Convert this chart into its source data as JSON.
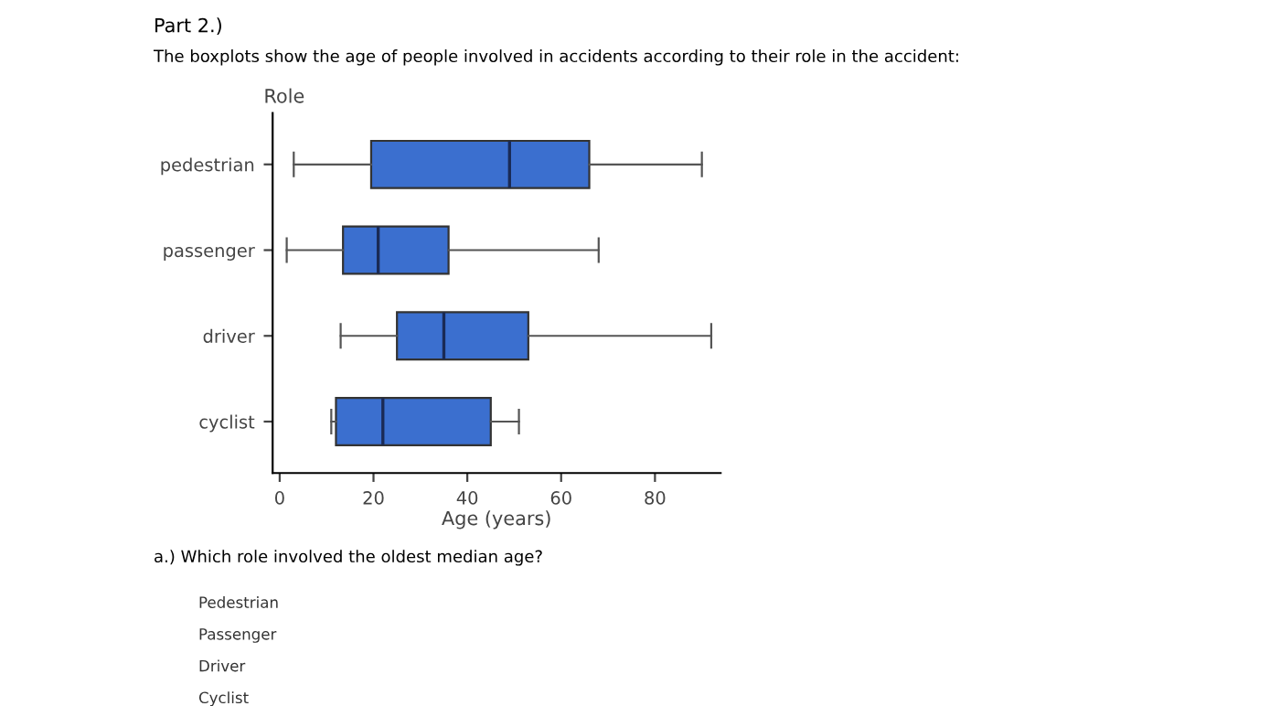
{
  "chart_data": {
    "type": "box",
    "title": "Part 2.)",
    "subtitle": "The boxplots show the age of people involved in accidents according to their role in the accident:",
    "ylabel": "Role",
    "xlabel": "Age (years)",
    "orientation": "horizontal",
    "categories": [
      "pedestrian",
      "passenger",
      "driver",
      "cyclist"
    ],
    "color": "#3b6fcf",
    "xlim": [
      -1.5,
      94
    ],
    "xticks": [
      0,
      20,
      40,
      60,
      80
    ],
    "grid": false,
    "boxes": [
      {
        "low": 3,
        "q1": 19.5,
        "median": 49,
        "q3": 66,
        "high": 90
      },
      {
        "low": 1.5,
        "q1": 13.5,
        "median": 21,
        "q3": 36,
        "high": 68
      },
      {
        "low": 13,
        "q1": 25,
        "median": 35,
        "q3": 53,
        "high": 92
      },
      {
        "low": 11,
        "q1": 12,
        "median": 22,
        "q3": 45,
        "high": 51
      }
    ],
    "annotations": [
      "a.) Which role involved the oldest median age?",
      "Pedestrian",
      "Passenger",
      "Driver",
      "Cyclist"
    ]
  }
}
